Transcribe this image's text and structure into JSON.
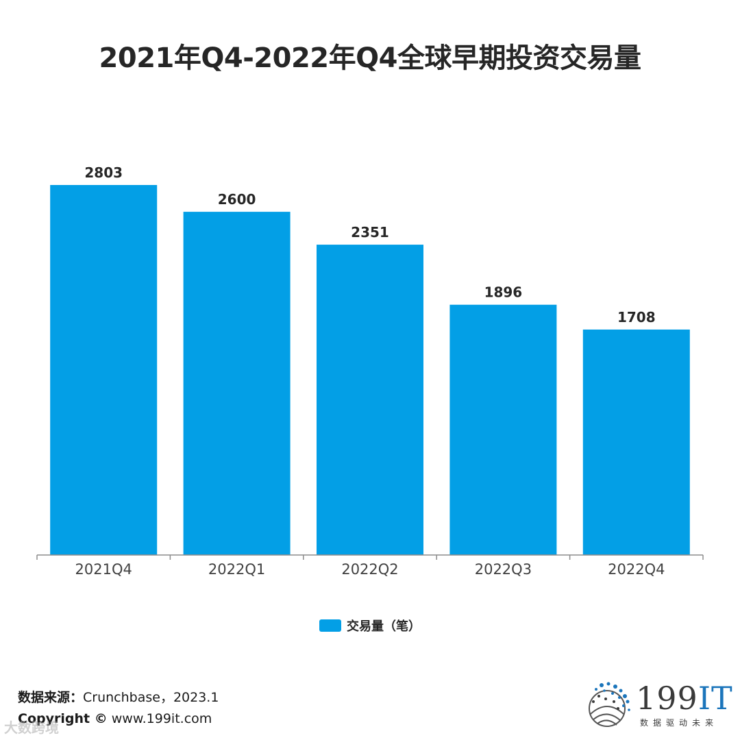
{
  "title": "2021年Q4-2022年Q4全球早期投资交易量",
  "chart_data": {
    "type": "bar",
    "categories": [
      "2021Q4",
      "2022Q1",
      "2022Q2",
      "2022Q3",
      "2022Q4"
    ],
    "series": [
      {
        "name": "交易量（笔）",
        "values": [
          2803,
          2600,
          2351,
          1896,
          1708
        ]
      }
    ],
    "ylim": [
      0,
      2803
    ],
    "grid": false,
    "legend_position": "bottom",
    "data_labels": true
  },
  "colors": {
    "bar": "#039fe6",
    "axis": "#8c8c8c"
  },
  "legend": {
    "label": "交易量（笔）"
  },
  "footer": {
    "source_label": "数据来源：",
    "source_value": "Crunchbase，2023.1",
    "copyright_label": "Copyright ©",
    "copyright_value": "www.199it.com"
  },
  "watermark": "大数跨境",
  "logo": {
    "name": "199",
    "accent": "IT",
    "tagline": "数据驱动未来"
  }
}
